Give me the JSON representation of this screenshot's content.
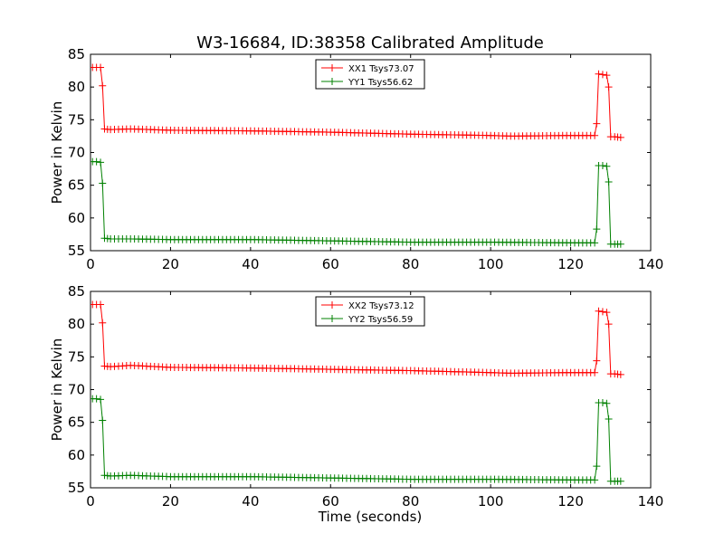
{
  "figure": {
    "title": "W3-16684, ID:38358 Calibrated Amplitude",
    "xlabel": "Time (seconds)"
  },
  "colors": {
    "XX": "#ff0000",
    "YY": "#008000"
  },
  "chart_data": [
    {
      "type": "line",
      "title": "W3-16684, ID:38358 Calibrated Amplitude",
      "xlabel": "",
      "ylabel": "Power in Kelvin",
      "xlim": [
        0,
        140
      ],
      "ylim": [
        55,
        85
      ],
      "xticks": [
        "0",
        "20",
        "40",
        "60",
        "80",
        "100",
        "120",
        "140"
      ],
      "yticks": [
        "55",
        "60",
        "65",
        "70",
        "75",
        "80",
        "85"
      ],
      "grid": false,
      "legend": "top-center",
      "series": [
        {
          "name": "XX1 Tsys73.07",
          "color": "#ff0000",
          "marker": "+",
          "x": [
            0.5,
            1.5,
            2.5,
            3.0,
            3.5,
            5,
            10,
            20,
            40,
            60,
            80,
            100,
            105,
            120,
            126,
            126.5,
            127,
            128,
            129,
            129.5,
            130,
            131,
            132.5
          ],
          "y": [
            83.0,
            83.0,
            83.0,
            80.2,
            73.6,
            73.5,
            73.6,
            73.4,
            73.3,
            73.1,
            72.8,
            72.6,
            72.5,
            72.6,
            72.6,
            74.4,
            82.0,
            81.9,
            81.8,
            80.0,
            72.4,
            72.4,
            72.3
          ]
        },
        {
          "name": "YY1 Tsys56.62",
          "color": "#008000",
          "marker": "+",
          "x": [
            0.5,
            1.5,
            2.5,
            3.0,
            3.5,
            5,
            10,
            20,
            40,
            60,
            80,
            100,
            120,
            126,
            126.5,
            127,
            128,
            129,
            129.5,
            130,
            131,
            132.5
          ],
          "y": [
            68.6,
            68.6,
            68.5,
            65.3,
            56.9,
            56.8,
            56.8,
            56.7,
            56.7,
            56.5,
            56.3,
            56.3,
            56.2,
            56.2,
            58.3,
            68.0,
            68.0,
            67.9,
            65.5,
            56.0,
            56.0,
            56.0
          ]
        }
      ]
    },
    {
      "type": "line",
      "title": "",
      "xlabel": "Time (seconds)",
      "ylabel": "Power in Kelvin",
      "xlim": [
        0,
        140
      ],
      "ylim": [
        55,
        85
      ],
      "xticks": [
        "0",
        "20",
        "40",
        "60",
        "80",
        "100",
        "120",
        "140"
      ],
      "yticks": [
        "55",
        "60",
        "65",
        "70",
        "75",
        "80",
        "85"
      ],
      "grid": false,
      "legend": "top-center",
      "series": [
        {
          "name": "XX2 Tsys73.12",
          "color": "#ff0000",
          "marker": "+",
          "x": [
            0.5,
            1.5,
            2.5,
            3.0,
            3.5,
            5,
            10,
            20,
            40,
            60,
            80,
            100,
            105,
            120,
            126,
            126.5,
            127,
            128,
            129,
            129.5,
            130,
            131,
            132.5
          ],
          "y": [
            83.0,
            83.0,
            83.0,
            80.2,
            73.6,
            73.5,
            73.7,
            73.4,
            73.3,
            73.1,
            72.9,
            72.6,
            72.5,
            72.6,
            72.6,
            74.4,
            82.0,
            81.9,
            81.8,
            80.0,
            72.4,
            72.4,
            72.3
          ]
        },
        {
          "name": "YY2 Tsys56.59",
          "color": "#008000",
          "marker": "+",
          "x": [
            0.5,
            1.5,
            2.5,
            3.0,
            3.5,
            5,
            10,
            20,
            40,
            60,
            80,
            100,
            120,
            126,
            126.5,
            127,
            128,
            129,
            129.5,
            130,
            131,
            132.5
          ],
          "y": [
            68.6,
            68.6,
            68.5,
            65.3,
            56.9,
            56.8,
            56.9,
            56.7,
            56.7,
            56.5,
            56.3,
            56.3,
            56.2,
            56.2,
            58.3,
            68.0,
            68.0,
            67.9,
            65.5,
            56.0,
            56.0,
            56.0
          ]
        }
      ]
    }
  ]
}
